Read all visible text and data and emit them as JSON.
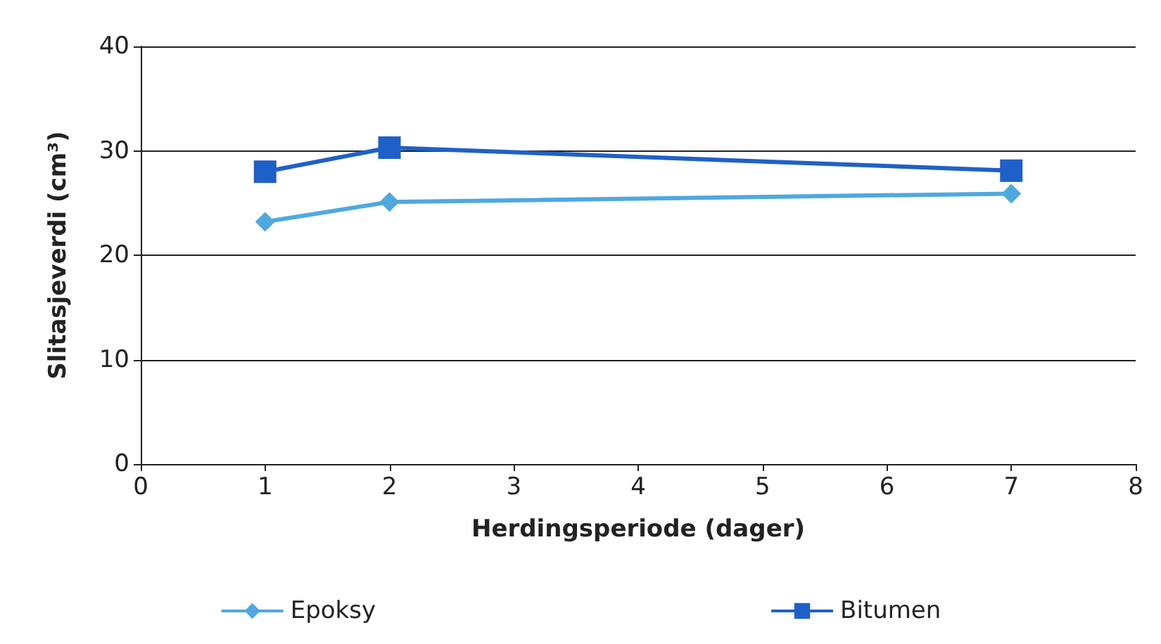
{
  "chart_data": {
    "type": "line",
    "xlabel": "Herdingsperiode (dager)",
    "ylabel": "Slitasjeverdi (cm³)",
    "series": [
      {
        "name": "Epoksy",
        "color": "#4fa8e0",
        "x": [
          1,
          2,
          7
        ],
        "values": [
          23.2,
          25.1,
          25.9
        ],
        "marker": "diamond"
      },
      {
        "name": "Bitumen",
        "color": "#1f5fc8",
        "x": [
          1,
          2,
          7
        ],
        "values": [
          28,
          30.3,
          28.1
        ],
        "marker": "square"
      }
    ],
    "xlim": [
      0,
      8
    ],
    "xticks": [
      0,
      1,
      2,
      3,
      4,
      5,
      6,
      7,
      8
    ],
    "ylim": [
      0,
      40
    ],
    "yticks": [
      0,
      10,
      20,
      30,
      40
    ],
    "grid": "y",
    "legend": "bottom"
  }
}
